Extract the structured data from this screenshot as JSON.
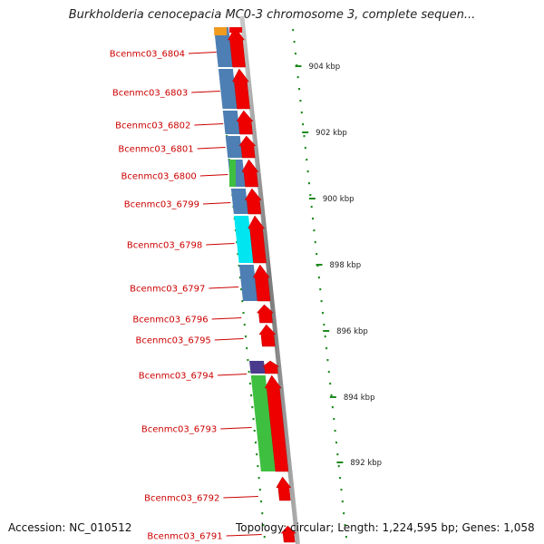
{
  "header": {
    "title": "Burkholderia cenocepacia MC0-3 chromosome 3, complete sequen..."
  },
  "footer": {
    "accession": "Accession: NC_010512",
    "topology": "Topology: circular; Length: 1,224,595 bp; Genes: 1,058"
  },
  "ticks": [
    {
      "label": "904 kbp"
    },
    {
      "label": "902 kbp"
    },
    {
      "label": "900 kbp"
    },
    {
      "label": "898 kbp"
    },
    {
      "label": "896 kbp"
    },
    {
      "label": "894 kbp"
    },
    {
      "label": "892 kbp"
    }
  ],
  "genes": [
    {
      "name": "Bcenmc03_6804",
      "cog_color": "#4e7fb4"
    },
    {
      "name": "Bcenmc03_6803",
      "cog_color": "#4e7fb4"
    },
    {
      "name": "Bcenmc03_6802",
      "cog_color": "#4e7fb4"
    },
    {
      "name": "Bcenmc03_6801",
      "cog_color": "#4e7fb4"
    },
    {
      "name": "Bcenmc03_6800",
      "cog_color": "#4e7fb4"
    },
    {
      "name": "Bcenmc03_6799",
      "cog_color": "#4e7fb4"
    },
    {
      "name": "Bcenmc03_6798",
      "cog_color": "#00e5f0"
    },
    {
      "name": "Bcenmc03_6797",
      "cog_color": "#4e7fb4"
    },
    {
      "name": "Bcenmc03_6796",
      "cog_color": ""
    },
    {
      "name": "Bcenmc03_6795",
      "cog_color": ""
    },
    {
      "name": "Bcenmc03_6794",
      "cog_color": "#4a3b8c"
    },
    {
      "name": "Bcenmc03_6793",
      "cog_color": "#3fbf3f"
    },
    {
      "name": "Bcenmc03_6792",
      "cog_color": ""
    },
    {
      "name": "Bcenmc03_6791",
      "cog_color": ""
    }
  ],
  "colors": {
    "gene_arrow": "#ee0000",
    "label_text": "#cc0000",
    "tick_marks": "#1e8a1e",
    "backbone": "#8c8c8c",
    "cog_orange": "#f09a1e",
    "cog_green": "#3fbf3f"
  }
}
